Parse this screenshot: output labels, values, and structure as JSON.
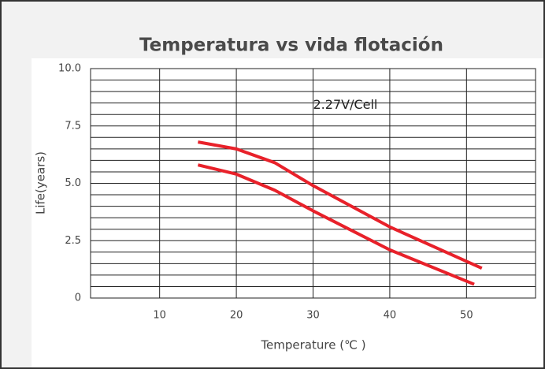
{
  "chart_data": {
    "type": "line",
    "title": "Temperatura vs vida flotación",
    "x_label": "Temperature (℃ )",
    "y_label": "Life(years)",
    "annotation": {
      "text": "2.27V/Cell",
      "x": 30,
      "y": 8.4
    },
    "series": [
      {
        "color": "#e8212a",
        "x": [
          15,
          20,
          25,
          30,
          40,
          52
        ],
        "values": [
          6.8,
          6.5,
          5.9,
          4.9,
          3.1,
          1.3
        ]
      },
      {
        "color": "#e8212a",
        "x": [
          15,
          20,
          25,
          30,
          40,
          51
        ],
        "values": [
          5.8,
          5.4,
          4.7,
          3.8,
          2.1,
          0.6
        ]
      }
    ],
    "xlim": [
      1,
      59
    ],
    "xticks": [
      10,
      20,
      30,
      40,
      50
    ],
    "ylim": [
      0,
      10
    ],
    "yticks": [
      0,
      2.5,
      {
        "value": 5,
        "label": "5.0"
      },
      7.5,
      {
        "value": 10,
        "label": "10.0"
      }
    ],
    "yminor": [
      0.5,
      1,
      1.5,
      2,
      3,
      3.5,
      4,
      4.5,
      5.5,
      6,
      6.5,
      7,
      8,
      8.5,
      9,
      9.5
    ],
    "grid": true
  }
}
